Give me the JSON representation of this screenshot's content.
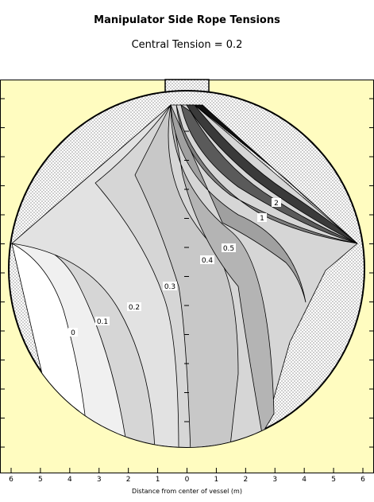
{
  "chart_data": {
    "type": "contour",
    "title": "Manipulator Side Rope Tensions",
    "subtitle": "Central Tension = 0.2",
    "xlabel": "Distance from center of vessel (m)",
    "ylabel": "",
    "xlim": [
      6.3,
      -6.3
    ],
    "x_ticks": [
      "6",
      "5",
      "4",
      "3",
      "2",
      "1",
      "0",
      "1",
      "2",
      "3",
      "4",
      "5",
      "6"
    ],
    "contour_labels": [
      "0",
      "0.1",
      "0.2",
      "0.3",
      "0.4",
      "0.5",
      "1",
      "2"
    ],
    "colors": {
      "background": "#fffcc0",
      "vessel_fill": "#ffffff",
      "shading_light": "#ffffff",
      "shading_dark": "#111111",
      "outline": "#000000"
    }
  }
}
